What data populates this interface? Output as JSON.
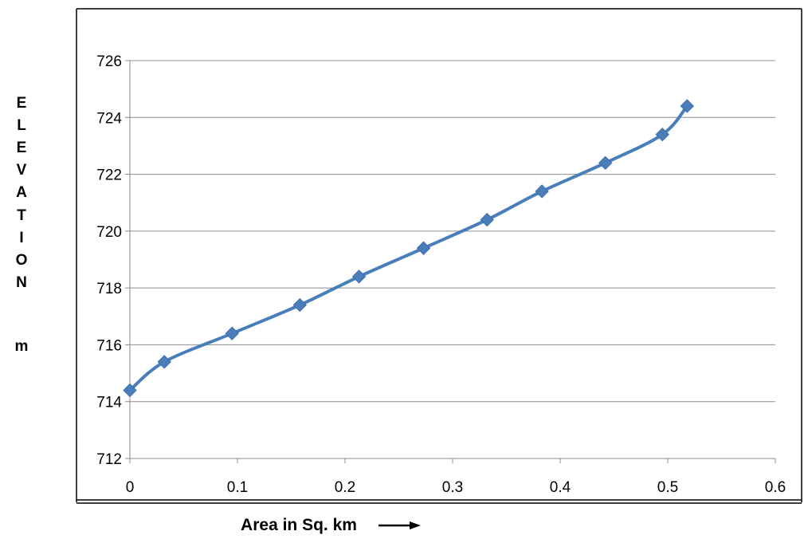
{
  "chart_data": {
    "type": "line",
    "xlabel": "Area in Sq. km",
    "ylabel": "ELEVATION m",
    "ylabel_letters": [
      "E",
      "L",
      "E",
      "V",
      "A",
      "T",
      "I",
      "O",
      "N",
      "",
      "m"
    ],
    "xlim": [
      0,
      0.6
    ],
    "ylim": [
      712,
      726
    ],
    "x_ticks": [
      "0",
      "0.1",
      "0.2",
      "0.3",
      "0.4",
      "0.5",
      "0.6"
    ],
    "y_ticks": [
      "712",
      "714",
      "716",
      "718",
      "720",
      "722",
      "724",
      "726"
    ],
    "grid": "horizontal",
    "series": [
      {
        "color": "#4a7ebb",
        "marker": "diamond",
        "x": [
          0,
          0.032,
          0.095,
          0.158,
          0.213,
          0.273,
          0.332,
          0.383,
          0.442,
          0.495,
          0.518
        ],
        "y": [
          714.4,
          715.4,
          716.4,
          717.4,
          718.4,
          719.4,
          720.4,
          721.4,
          722.4,
          723.4,
          724.4
        ]
      }
    ]
  }
}
